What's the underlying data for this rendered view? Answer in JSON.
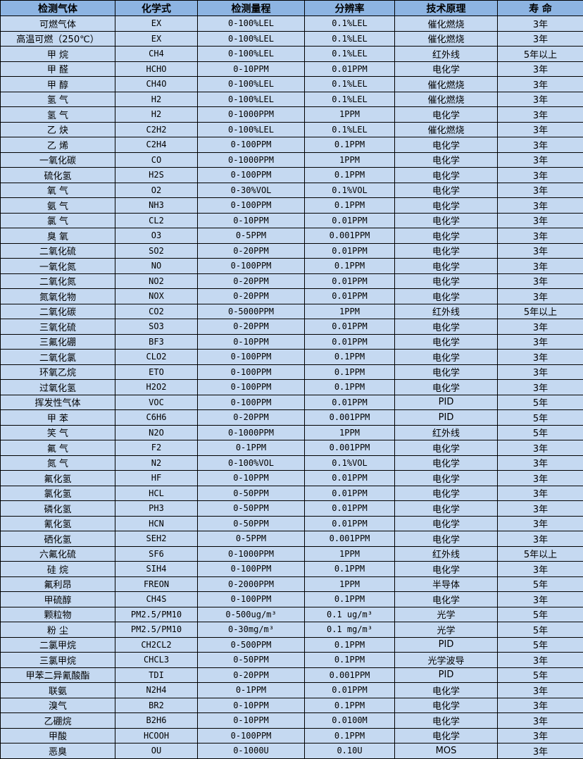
{
  "table": {
    "headers": [
      "检测气体",
      "化学式",
      "检测量程",
      "分辨率",
      "技术原理",
      "寿 命"
    ],
    "rows": [
      [
        "可燃气体",
        "EX",
        "0-100%LEL",
        "0.1%LEL",
        "催化燃烧",
        "3年"
      ],
      [
        "高温可燃（250℃）",
        "EX",
        "0-100%LEL",
        "0.1%LEL",
        "催化燃烧",
        "3年"
      ],
      [
        "甲 烷",
        "CH4",
        "0-100%LEL",
        "0.1%LEL",
        "红外线",
        "5年以上"
      ],
      [
        "甲 醛",
        "HCHO",
        "0-10PPM",
        "0.01PPM",
        "电化学",
        "3年"
      ],
      [
        "甲 醇",
        "CH4O",
        "0-100%LEL",
        "0.1%LEL",
        "催化燃烧",
        "3年"
      ],
      [
        "氢 气",
        "H2",
        "0-100%LEL",
        "0.1%LEL",
        "催化燃烧",
        "3年"
      ],
      [
        "氢 气",
        "H2",
        "0-1000PPM",
        "1PPM",
        "电化学",
        "3年"
      ],
      [
        "乙 炔",
        "C2H2",
        "0-100%LEL",
        "0.1%LEL",
        "催化燃烧",
        "3年"
      ],
      [
        "乙 烯",
        "C2H4",
        "0-100PPM",
        "0.1PPM",
        "电化学",
        "3年"
      ],
      [
        "一氧化碳",
        "CO",
        "0-1000PPM",
        "1PPM",
        "电化学",
        "3年"
      ],
      [
        "硫化氢",
        "H2S",
        "0-100PPM",
        "0.1PPM",
        "电化学",
        "3年"
      ],
      [
        "氧 气",
        "O2",
        "0-30%VOL",
        "0.1%VOL",
        "电化学",
        "3年"
      ],
      [
        "氨 气",
        "NH3",
        "0-100PPM",
        "0.1PPM",
        "电化学",
        "3年"
      ],
      [
        "氯 气",
        "CL2",
        "0-10PPM",
        "0.01PPM",
        "电化学",
        "3年"
      ],
      [
        "臭 氧",
        "O3",
        "0-5PPM",
        "0.001PPM",
        "电化学",
        "3年"
      ],
      [
        "二氧化硫",
        "SO2",
        "0-20PPM",
        "0.01PPM",
        "电化学",
        "3年"
      ],
      [
        "一氧化氮",
        "NO",
        "0-100PPM",
        "0.1PPM",
        "电化学",
        "3年"
      ],
      [
        "二氧化氮",
        "NO2",
        "0-20PPM",
        "0.01PPM",
        "电化学",
        "3年"
      ],
      [
        "氮氧化物",
        "NOX",
        "0-20PPM",
        "0.01PPM",
        "电化学",
        "3年"
      ],
      [
        "二氧化碳",
        "CO2",
        "0-5000PPM",
        "1PPM",
        "红外线",
        "5年以上"
      ],
      [
        "三氧化硫",
        "SO3",
        "0-20PPM",
        "0.01PPM",
        "电化学",
        "3年"
      ],
      [
        "三氟化硼",
        "BF3",
        "0-10PPM",
        "0.01PPM",
        "电化学",
        "3年"
      ],
      [
        "二氧化氯",
        "CLO2",
        "0-100PPM",
        "0.1PPM",
        "电化学",
        "3年"
      ],
      [
        "环氧乙烷",
        "ETO",
        "0-100PPM",
        "0.1PPM",
        "电化学",
        "3年"
      ],
      [
        "过氧化氢",
        "H2O2",
        "0-100PPM",
        "0.1PPM",
        "电化学",
        "3年"
      ],
      [
        "挥发性气体",
        "VOC",
        "0-100PPM",
        "0.01PPM",
        "PID",
        "5年"
      ],
      [
        "甲 苯",
        "C6H6",
        "0-20PPM",
        "0.001PPM",
        "PID",
        "5年"
      ],
      [
        "笑 气",
        "N2O",
        "0-1000PPM",
        "1PPM",
        "红外线",
        "5年"
      ],
      [
        "氟 气",
        "F2",
        "0-1PPM",
        "0.001PPM",
        "电化学",
        "3年"
      ],
      [
        "氮 气",
        "N2",
        "0-100%VOL",
        "0.1%VOL",
        "电化学",
        "3年"
      ],
      [
        "氟化氢",
        "HF",
        "0-10PPM",
        "0.01PPM",
        "电化学",
        "3年"
      ],
      [
        "氯化氢",
        "HCL",
        "0-50PPM",
        "0.01PPM",
        "电化学",
        "3年"
      ],
      [
        "磷化氢",
        "PH3",
        "0-50PPM",
        "0.01PPM",
        "电化学",
        "3年"
      ],
      [
        "氰化氢",
        "HCN",
        "0-50PPM",
        "0.01PPM",
        "电化学",
        "3年"
      ],
      [
        "硒化氢",
        "SEH2",
        "0-5PPM",
        "0.001PPM",
        "电化学",
        "3年"
      ],
      [
        "六氟化硫",
        "SF6",
        "0-1000PPM",
        "1PPM",
        "红外线",
        "5年以上"
      ],
      [
        "硅 烷",
        "SIH4",
        "0-100PPM",
        "0.1PPM",
        "电化学",
        "3年"
      ],
      [
        "氟利昂",
        "FREON",
        "0-2000PPM",
        "1PPM",
        "半导体",
        "5年"
      ],
      [
        "甲硫醇",
        "CH4S",
        "0-100PPM",
        "0.1PPM",
        "电化学",
        "3年"
      ],
      [
        "颗粒物",
        "PM2.5/PM10",
        "0-500ug/m³",
        "0.1 ug/m³",
        "光学",
        "5年"
      ],
      [
        "粉 尘",
        "PM2.5/PM10",
        "0-30mg/m³",
        "0.1 mg/m³",
        "光学",
        "5年"
      ],
      [
        "二氯甲烷",
        "CH2CL2",
        "0-500PPM",
        "0.1PPM",
        "PID",
        "5年"
      ],
      [
        "三氯甲烷",
        "CHCL3",
        "0-50PPM",
        "0.1PPM",
        "光学波导",
        "3年"
      ],
      [
        "甲苯二异氰酸酯",
        "TDI",
        "0-20PPM",
        "0.001PPM",
        "PID",
        "5年"
      ],
      [
        "联氨",
        "N2H4",
        "0-1PPM",
        "0.01PPM",
        "电化学",
        "3年"
      ],
      [
        "溴气",
        "BR2",
        "0-10PPM",
        "0.1PPM",
        "电化学",
        "3年"
      ],
      [
        "乙硼烷",
        "B2H6",
        "0-10PPM",
        "0.0100M",
        "电化学",
        "3年"
      ],
      [
        "甲酸",
        "HCOOH",
        "0-100PPM",
        "0.1PPM",
        "电化学",
        "3年"
      ],
      [
        "恶臭",
        "OU",
        "0-1000U",
        "0.10U",
        "MOS",
        "3年"
      ]
    ]
  },
  "colors": {
    "header_bg": "#8db4e2",
    "row_bg": "#c5d9f1",
    "border": "#000000"
  }
}
